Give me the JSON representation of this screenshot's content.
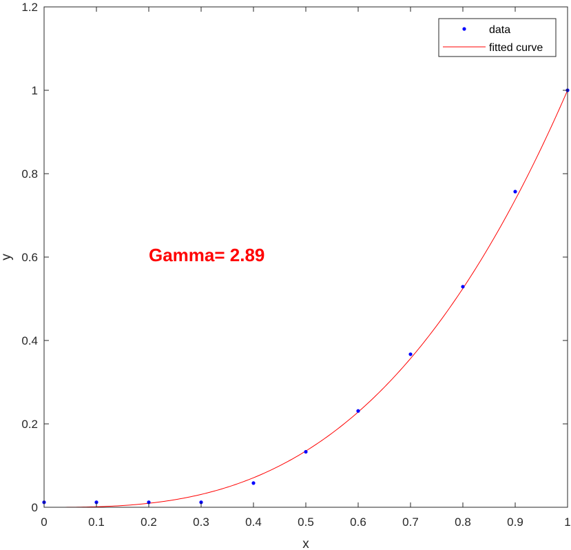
{
  "chart_data": {
    "type": "scatter",
    "xlabel": "x",
    "ylabel": "y",
    "xlim": [
      0,
      1
    ],
    "ylim": [
      0,
      1.2
    ],
    "x_ticks": [
      0,
      0.1,
      0.2,
      0.3,
      0.4,
      0.5,
      0.6,
      0.7,
      0.8,
      0.9,
      1
    ],
    "y_ticks": [
      0,
      0.2,
      0.4,
      0.6,
      0.8,
      1,
      1.2
    ],
    "x_tick_labels": [
      "0",
      "0.1",
      "0.2",
      "0.3",
      "0.4",
      "0.5",
      "0.6",
      "0.7",
      "0.8",
      "0.9",
      "1"
    ],
    "y_tick_labels": [
      "0",
      "0.2",
      "0.4",
      "0.6",
      "0.8",
      "1",
      "1.2"
    ],
    "grid": false,
    "legend_position": "top-right",
    "series": [
      {
        "name": "data",
        "kind": "markers",
        "color": "#0000ff",
        "x": [
          0,
          0.1,
          0.2,
          0.3,
          0.4,
          0.5,
          0.6,
          0.7,
          0.8,
          0.9,
          1
        ],
        "y": [
          0.012,
          0.012,
          0.012,
          0.012,
          0.058,
          0.133,
          0.231,
          0.367,
          0.529,
          0.757,
          1.0
        ]
      },
      {
        "name": "fitted curve",
        "kind": "line",
        "color": "#ff0000",
        "function": "y = x^gamma",
        "gamma": 2.89
      }
    ],
    "annotation": {
      "text": "Gamma= 2.89",
      "x": 0.2,
      "y": 0.59,
      "color": "#ff0000"
    }
  }
}
